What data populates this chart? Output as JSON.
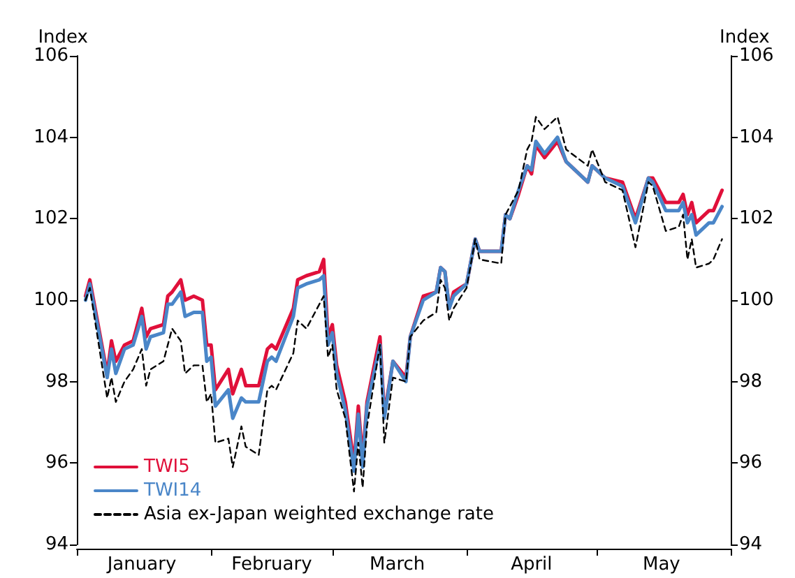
{
  "chart_data": {
    "type": "line",
    "ylabel": "Index",
    "y2label": "Index",
    "x": [
      "--01-03",
      "--01-04",
      "--01-08",
      "--01-09",
      "--01-10",
      "--01-12",
      "--01-14",
      "--01-16",
      "--01-17",
      "--01-18",
      "--01-21",
      "--01-22",
      "--01-23",
      "--01-25",
      "--01-26",
      "--01-28",
      "--01-30",
      "--01-31",
      "--02-01",
      "--02-02",
      "--02-05",
      "--02-06",
      "--02-08",
      "--02-09",
      "--02-12",
      "--02-14",
      "--02-15",
      "--02-16",
      "--02-20",
      "--02-21",
      "--02-23",
      "--02-26",
      "--02-27",
      "--02-28",
      "--03-01",
      "--03-02",
      "--03-04",
      "--03-06",
      "--03-07",
      "--03-08",
      "--03-09",
      "--03-12",
      "--03-13",
      "--03-15",
      "--03-18",
      "--03-19",
      "--03-22",
      "--03-25",
      "--03-26",
      "--03-27",
      "--03-28",
      "--03-29",
      "--04-01",
      "--04-03",
      "--04-04",
      "--04-09",
      "--04-10",
      "--04-11",
      "--04-13",
      "--04-15",
      "--04-16",
      "--04-17",
      "--04-19",
      "--04-22",
      "--04-24",
      "--04-29",
      "--04-30",
      "--05-03",
      "--05-07",
      "--05-10",
      "--05-13",
      "--05-14",
      "--05-17",
      "--05-20",
      "--05-21",
      "--05-22",
      "--05-23",
      "--05-24",
      "--05-27",
      "--05-28",
      "--05-30"
    ],
    "series": [
      {
        "name": "TWI5",
        "color": "#e0103a",
        "line_style": "solid",
        "values": [
          100.1,
          100.5,
          98.2,
          99.0,
          98.5,
          98.9,
          99.0,
          99.8,
          99.1,
          99.3,
          99.4,
          100.1,
          100.2,
          100.5,
          100.0,
          100.1,
          100.0,
          98.9,
          98.9,
          97.8,
          98.3,
          97.7,
          98.3,
          97.9,
          97.9,
          98.8,
          98.9,
          98.8,
          99.8,
          100.5,
          100.6,
          100.7,
          101.0,
          99.1,
          99.4,
          98.4,
          97.5,
          96.0,
          97.4,
          96.1,
          97.5,
          99.1,
          97.2,
          98.5,
          98.1,
          99.1,
          100.1,
          100.2,
          100.8,
          100.7,
          99.8,
          100.2,
          100.4,
          101.5,
          101.2,
          101.2,
          102.1,
          102.0,
          102.6,
          103.3,
          103.1,
          103.8,
          103.5,
          103.9,
          103.4,
          102.9,
          103.3,
          103.0,
          102.9,
          102.0,
          103.0,
          103.0,
          102.4,
          102.4,
          102.6,
          102.1,
          102.4,
          101.9,
          102.2,
          102.2,
          102.7
        ]
      },
      {
        "name": "TWI14",
        "color": "#4a86c8",
        "line_style": "solid",
        "values": [
          100.0,
          100.4,
          98.1,
          98.8,
          98.2,
          98.8,
          98.9,
          99.6,
          98.8,
          99.1,
          99.2,
          99.9,
          99.9,
          100.2,
          99.6,
          99.7,
          99.7,
          98.5,
          98.6,
          97.4,
          97.8,
          97.1,
          97.6,
          97.5,
          97.5,
          98.5,
          98.6,
          98.5,
          99.6,
          100.3,
          100.4,
          100.5,
          100.6,
          98.9,
          99.2,
          98.2,
          97.3,
          95.8,
          97.2,
          95.9,
          97.4,
          98.9,
          97.1,
          98.5,
          98.0,
          99.1,
          100.0,
          100.2,
          100.8,
          100.7,
          99.8,
          100.1,
          100.4,
          101.5,
          101.2,
          101.2,
          102.1,
          102.0,
          102.7,
          103.3,
          103.2,
          103.9,
          103.6,
          104.0,
          103.4,
          102.9,
          103.3,
          103.0,
          102.8,
          101.9,
          103.0,
          102.9,
          102.2,
          102.2,
          102.4,
          101.9,
          102.1,
          101.6,
          101.9,
          101.9,
          102.3
        ]
      },
      {
        "name": "Asia ex-Japan weighted exchange rate",
        "color": "#000000",
        "line_style": "dashed",
        "values": [
          100.0,
          100.3,
          97.6,
          98.1,
          97.5,
          98.0,
          98.3,
          98.8,
          97.9,
          98.3,
          98.5,
          98.9,
          99.3,
          99.0,
          98.2,
          98.4,
          98.4,
          97.5,
          97.7,
          96.5,
          96.6,
          95.9,
          96.9,
          96.4,
          96.2,
          97.8,
          97.9,
          97.8,
          98.7,
          99.5,
          99.3,
          99.9,
          100.1,
          98.6,
          98.9,
          97.8,
          97.1,
          95.3,
          96.5,
          95.4,
          96.9,
          98.9,
          96.5,
          98.1,
          98.0,
          99.1,
          99.5,
          99.7,
          100.5,
          100.3,
          99.5,
          99.8,
          100.3,
          101.5,
          101.0,
          100.9,
          102.1,
          102.3,
          102.7,
          103.7,
          103.9,
          104.5,
          104.2,
          104.5,
          103.7,
          103.3,
          103.7,
          102.9,
          102.7,
          101.3,
          102.9,
          102.8,
          101.7,
          101.8,
          102.1,
          101.0,
          101.5,
          100.8,
          100.9,
          101.0,
          101.5
        ]
      }
    ],
    "xlim": [
      "--01-01",
      "--06-01"
    ],
    "xticks": [
      {
        "value": "--01-01",
        "label": null
      },
      {
        "value": "--01-16",
        "label": "January"
      },
      {
        "value": "--02-01",
        "label": null
      },
      {
        "value": "--02-15",
        "label": "February"
      },
      {
        "value": "--03-01",
        "label": null
      },
      {
        "value": "--03-16",
        "label": "March"
      },
      {
        "value": "--04-01",
        "label": null
      },
      {
        "value": "--04-16",
        "label": "April"
      },
      {
        "value": "--05-01",
        "label": null
      },
      {
        "value": "--05-16",
        "label": "May"
      },
      {
        "value": "--06-01",
        "label": null
      }
    ],
    "ylim": [
      94,
      106
    ],
    "yticks": [
      94,
      96,
      98,
      100,
      102,
      104,
      106
    ],
    "y2lim": [
      94,
      106
    ],
    "y2ticks": [
      94,
      96,
      98,
      100,
      102,
      104,
      106
    ],
    "grid": false,
    "legend": "bottom left",
    "marker": "none"
  }
}
